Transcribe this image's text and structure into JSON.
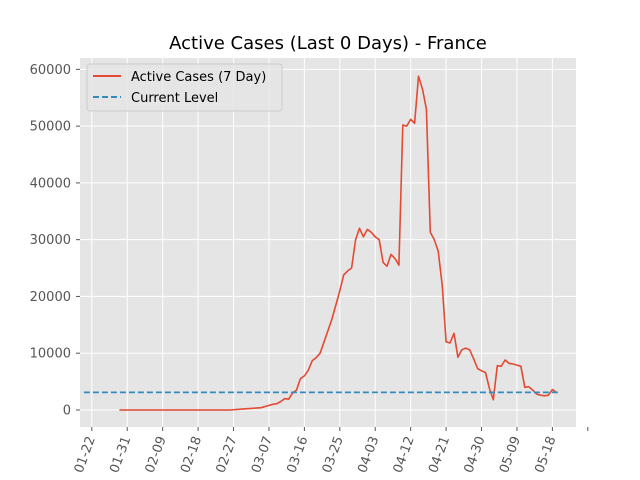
{
  "chart_data": {
    "type": "line",
    "title": "Active Cases (Last 0 Days) - France",
    "xlabel": "",
    "ylabel": "",
    "x_unit": "date",
    "xlim": [
      "2020-01-19",
      "2020-05-24"
    ],
    "ylim": [
      -3000,
      62000
    ],
    "x_ticks": [
      "2020-01-22",
      "2020-01-31",
      "2020-02-09",
      "2020-02-18",
      "2020-02-27",
      "2020-03-07",
      "2020-03-16",
      "2020-03-25",
      "2020-04-03",
      "2020-04-12",
      "2020-04-21",
      "2020-04-30",
      "2020-05-09",
      "2020-05-18"
    ],
    "x_tick_labels": [
      "01-22",
      "01-31",
      "02-09",
      "02-18",
      "02-27",
      "03-07",
      "03-16",
      "03-25",
      "04-03",
      "04-12",
      "04-21",
      "04-30",
      "05-09",
      "05-18"
    ],
    "y_ticks": [
      0,
      10000,
      20000,
      30000,
      40000,
      50000,
      60000
    ],
    "y_tick_labels": [
      "0",
      "10000",
      "20000",
      "30000",
      "40000",
      "50000",
      "60000"
    ],
    "grid": true,
    "legend_position": "top-left",
    "series": [
      {
        "name": "Active Cases (7 Day)",
        "color": "#E24A33",
        "style": "solid",
        "x": [
          "2020-01-29",
          "2020-02-05",
          "2020-02-12",
          "2020-02-19",
          "2020-02-26",
          "2020-03-01",
          "2020-03-03",
          "2020-03-05",
          "2020-03-07",
          "2020-03-08",
          "2020-03-09",
          "2020-03-10",
          "2020-03-11",
          "2020-03-12",
          "2020-03-13",
          "2020-03-14",
          "2020-03-15",
          "2020-03-16",
          "2020-03-17",
          "2020-03-18",
          "2020-03-19",
          "2020-03-20",
          "2020-03-21",
          "2020-03-22",
          "2020-03-23",
          "2020-03-24",
          "2020-03-25",
          "2020-03-26",
          "2020-03-27",
          "2020-03-28",
          "2020-03-29",
          "2020-03-30",
          "2020-03-31",
          "2020-04-01",
          "2020-04-02",
          "2020-04-03",
          "2020-04-04",
          "2020-04-05",
          "2020-04-06",
          "2020-04-07",
          "2020-04-08",
          "2020-04-09",
          "2020-04-10",
          "2020-04-11",
          "2020-04-12",
          "2020-04-13",
          "2020-04-14",
          "2020-04-15",
          "2020-04-16",
          "2020-04-17",
          "2020-04-18",
          "2020-04-19",
          "2020-04-20",
          "2020-04-21",
          "2020-04-22",
          "2020-04-23",
          "2020-04-24",
          "2020-04-25",
          "2020-04-26",
          "2020-04-27",
          "2020-04-28",
          "2020-04-29",
          "2020-04-30",
          "2020-05-01",
          "2020-05-02",
          "2020-05-03",
          "2020-05-04",
          "2020-05-05",
          "2020-05-06",
          "2020-05-07",
          "2020-05-08",
          "2020-05-09",
          "2020-05-10",
          "2020-05-11",
          "2020-05-12",
          "2020-05-13",
          "2020-05-14",
          "2020-05-15",
          "2020-05-16",
          "2020-05-17",
          "2020-05-18",
          "2020-05-19"
        ],
        "y": [
          0,
          0,
          0,
          0,
          0,
          200,
          300,
          400,
          800,
          1000,
          1100,
          1500,
          2000,
          1900,
          3000,
          3500,
          5500,
          6000,
          7000,
          8700,
          9200,
          10000,
          12000,
          14000,
          16000,
          18500,
          21000,
          23800,
          24500,
          25000,
          30000,
          32000,
          30500,
          31800,
          31300,
          30500,
          30000,
          26000,
          25300,
          27400,
          26700,
          25500,
          50200,
          50000,
          51200,
          50500,
          58800,
          56500,
          53000,
          31300,
          30000,
          28000,
          22000,
          12000,
          11800,
          13500,
          9300,
          10600,
          10900,
          10600,
          9000,
          7300,
          6900,
          6600,
          3800,
          1800,
          7800,
          7700,
          8800,
          8200,
          8100,
          7900,
          7700,
          4000,
          4100,
          3500,
          2800,
          2600,
          2500,
          2600,
          3600,
          3100
        ]
      },
      {
        "name": "Current Level",
        "color": "#348ABD",
        "style": "dashed",
        "x": [
          "2020-01-20",
          "2020-05-20"
        ],
        "y": [
          3100,
          3100
        ]
      }
    ]
  }
}
